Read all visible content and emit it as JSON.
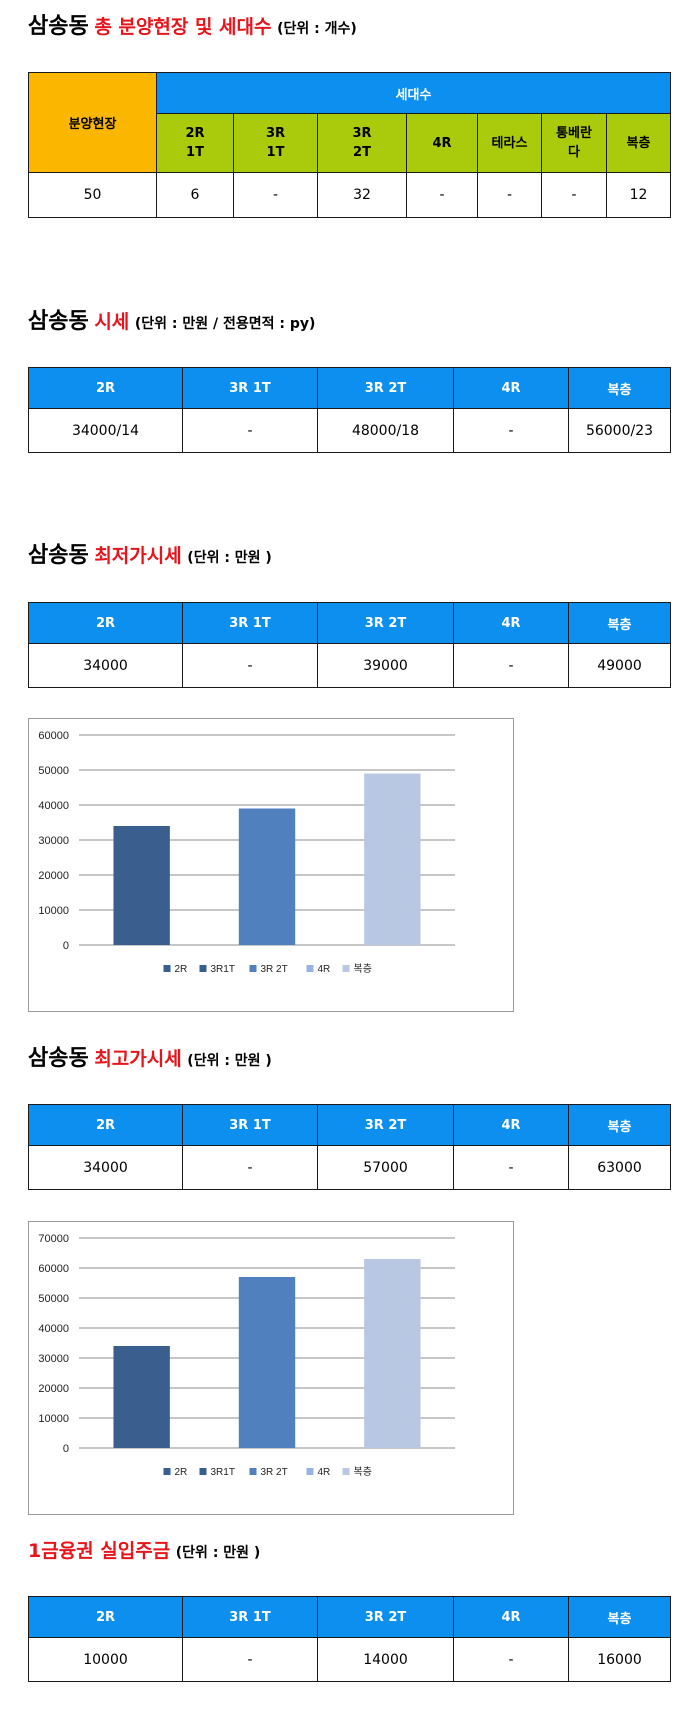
{
  "sections": {
    "units": {
      "title_main": "삼송동",
      "title_accent": "총 분양현장 및 세대수",
      "title_unit": "(단위 : 개수)",
      "site_header": "분양현장",
      "group_header": "세대수",
      "columns": [
        "2R\n1T",
        "3R\n1T",
        "3R\n2T",
        "4R",
        "테라스",
        "통베란\n다",
        "복층"
      ],
      "site_value": "50",
      "values": [
        "6",
        "-",
        "32",
        "-",
        "-",
        "-",
        "12"
      ]
    },
    "price": {
      "title_main": "삼송동",
      "title_accent": "시세",
      "title_unit": "(단위 : 만원 / 전용면적 : py)",
      "columns": [
        "2R",
        "3R 1T",
        "3R 2T",
        "4R",
        "복층"
      ],
      "values": [
        "34000/14",
        "-",
        "48000/18",
        "-",
        "56000/23"
      ]
    },
    "min_price": {
      "title_main": "삼송동",
      "title_accent": "최저가시세",
      "title_unit": "(단위 : 만원 )",
      "columns": [
        "2R",
        "3R 1T",
        "3R 2T",
        "4R",
        "복층"
      ],
      "values": [
        "34000",
        "-",
        "39000",
        "-",
        "49000"
      ]
    },
    "max_price": {
      "title_main": "삼송동",
      "title_accent": "최고가시세",
      "title_unit": "(단위 : 만원 )",
      "columns": [
        "2R",
        "3R 1T",
        "3R 2T",
        "4R",
        "복층"
      ],
      "values": [
        "34000",
        "-",
        "57000",
        "-",
        "63000"
      ]
    },
    "deposit": {
      "title_accent": "1금융권 실입주금",
      "title_unit": "(단위 : 만원 )",
      "columns": [
        "2R",
        "3R 1T",
        "3R 2T",
        "4R",
        "복층"
      ],
      "values": [
        "10000",
        "-",
        "14000",
        "-",
        "16000"
      ]
    }
  },
  "chart_data": [
    {
      "type": "bar",
      "categories": [
        "2R",
        "3R1T",
        "3R 2T",
        "4R",
        "복층"
      ],
      "values": [
        34000,
        null,
        39000,
        null,
        49000
      ],
      "colors": [
        "#3a5f8e",
        "#3a5f8e",
        "#5080bd",
        "#98b4de",
        "#b9c8e2"
      ],
      "ylim": [
        0,
        60000
      ],
      "yticks": [
        0,
        10000,
        20000,
        30000,
        40000,
        50000,
        60000
      ],
      "legend": "bottom",
      "grid": true
    },
    {
      "type": "bar",
      "categories": [
        "2R",
        "3R1T",
        "3R 2T",
        "4R",
        "복층"
      ],
      "values": [
        34000,
        null,
        57000,
        null,
        63000
      ],
      "colors": [
        "#3a5f8e",
        "#3a5f8e",
        "#5080bd",
        "#98b4de",
        "#b9c8e2"
      ],
      "ylim": [
        0,
        70000
      ],
      "yticks": [
        0,
        10000,
        20000,
        30000,
        40000,
        50000,
        60000,
        70000
      ],
      "legend": "bottom",
      "grid": true
    }
  ]
}
